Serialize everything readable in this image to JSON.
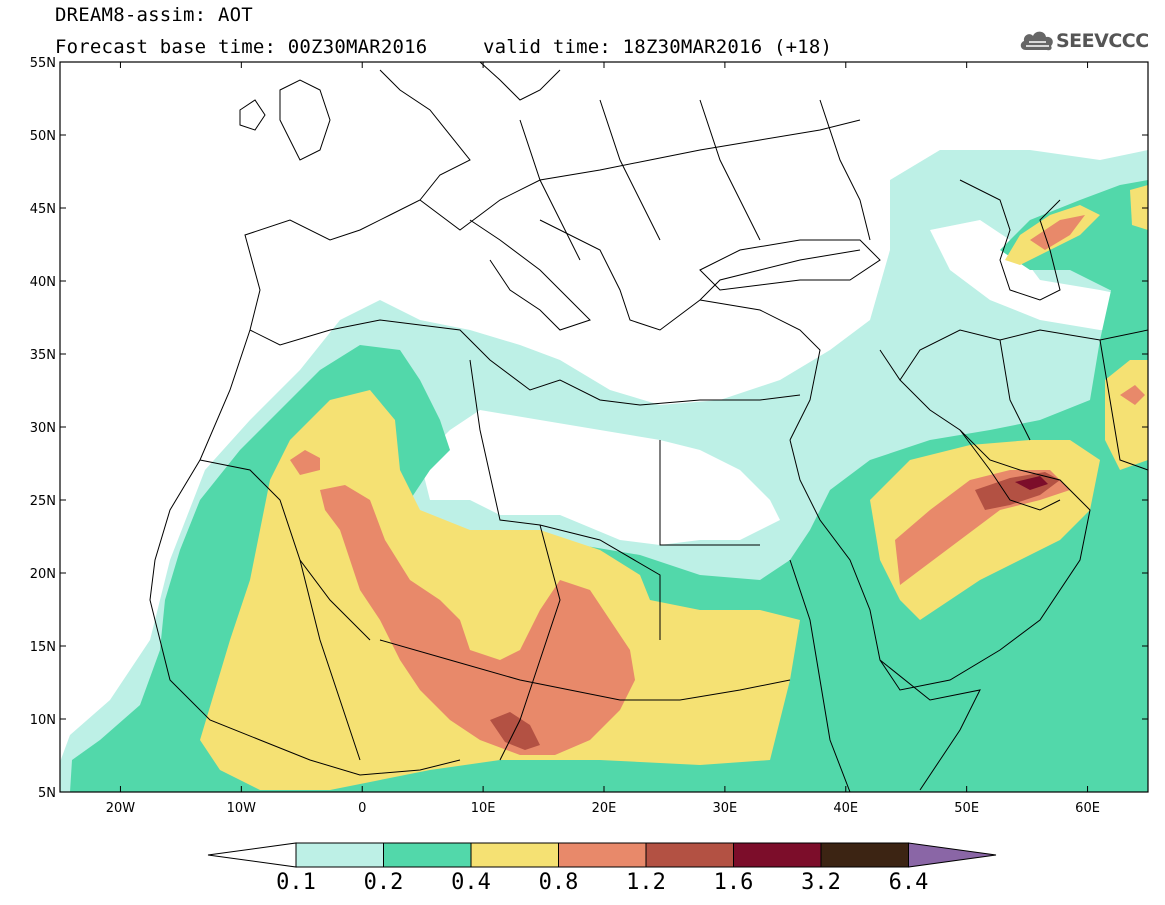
{
  "title": {
    "line1": "DREAM8-assim: AOT",
    "base_time": "Forecast base time: 00Z30MAR2016",
    "valid_time": "valid time: 18Z30MAR2016 (+18)"
  },
  "logo": {
    "text": "SEEVCCC",
    "icon": "cloud-icon"
  },
  "map": {
    "lon_range": [
      -25,
      65
    ],
    "lat_range": [
      5,
      55
    ],
    "lat_ticks": [
      "55N",
      "50N",
      "45N",
      "40N",
      "35N",
      "30N",
      "25N",
      "20N",
      "15N",
      "10N",
      "5N"
    ],
    "lon_ticks": [
      "20W",
      "10W",
      "0",
      "10E",
      "20E",
      "30E",
      "40E",
      "50E",
      "60E"
    ]
  },
  "legend": {
    "labels": [
      "0.1",
      "0.2",
      "0.4",
      "0.8",
      "1.2",
      "1.6",
      "3.2",
      "6.4"
    ],
    "colors": [
      "#ffffff",
      "#bdf0e6",
      "#52d8aa",
      "#f5e173",
      "#e8896a",
      "#b35143",
      "#7c0d2a",
      "#3c2413",
      "#8a66a6"
    ]
  }
}
